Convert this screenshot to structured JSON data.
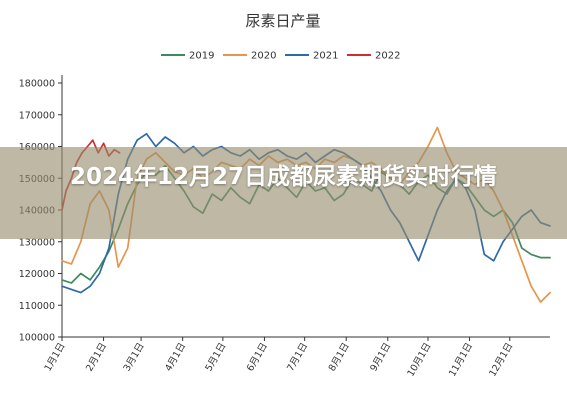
{
  "banner": {
    "headline": "2024年12月27日成都尿素期货实时行情"
  },
  "chart_data": {
    "type": "line",
    "title": "尿素日产量",
    "xlabel": "",
    "ylabel": "",
    "ylim": [
      100000,
      180000
    ],
    "yticks": [
      100000,
      110000,
      120000,
      130000,
      140000,
      150000,
      160000,
      170000,
      180000
    ],
    "x_tick_labels": [
      "1月1日",
      "2月1日",
      "3月1日",
      "4月1日",
      "5月1日",
      "6月1日",
      "7月1日",
      "8月1日",
      "9月1日",
      "10月1日",
      "11月1日",
      "12月1日"
    ],
    "x_tick_days": [
      1,
      32,
      60,
      91,
      121,
      152,
      182,
      213,
      244,
      274,
      305,
      335
    ],
    "legend_position": "top-center",
    "grid": false,
    "series": [
      {
        "name": "2019",
        "color": "#3e8a5e",
        "x_days": [
          1,
          8,
          15,
          22,
          29,
          36,
          43,
          50,
          57,
          64,
          71,
          78,
          85,
          92,
          99,
          106,
          113,
          120,
          127,
          134,
          141,
          148,
          155,
          162,
          169,
          176,
          183,
          190,
          197,
          204,
          211,
          218,
          225,
          232,
          239,
          246,
          253,
          260,
          267,
          274,
          281,
          288,
          295,
          302,
          309,
          316,
          323,
          330,
          337,
          344,
          351,
          358,
          365
        ],
        "values": [
          118000,
          117000,
          120000,
          118000,
          122000,
          127000,
          134000,
          142000,
          148000,
          152000,
          151000,
          154000,
          150000,
          146000,
          141000,
          139000,
          145000,
          143000,
          147000,
          144000,
          142000,
          148000,
          146000,
          150000,
          147000,
          144000,
          149000,
          146000,
          147000,
          143000,
          145000,
          150000,
          148000,
          146000,
          152000,
          150000,
          148000,
          145000,
          149000,
          151000,
          147000,
          145000,
          150000,
          148000,
          144000,
          140000,
          138000,
          140000,
          136000,
          128000,
          126000,
          125000,
          125000
        ]
      },
      {
        "name": "2020",
        "color": "#e5964c",
        "x_days": [
          1,
          8,
          15,
          22,
          29,
          36,
          43,
          50,
          57,
          64,
          71,
          78,
          85,
          92,
          99,
          106,
          113,
          120,
          127,
          134,
          141,
          148,
          155,
          162,
          169,
          176,
          183,
          190,
          197,
          204,
          211,
          218,
          225,
          232,
          239,
          246,
          253,
          260,
          267,
          274,
          281,
          288,
          295,
          302,
          309,
          316,
          323,
          330,
          337,
          344,
          351,
          358,
          365
        ],
        "values": [
          124000,
          123000,
          130000,
          142000,
          146000,
          140000,
          122000,
          128000,
          150000,
          156000,
          158000,
          155000,
          152000,
          151000,
          153000,
          150000,
          152000,
          155000,
          154000,
          153000,
          156000,
          154000,
          157000,
          155000,
          156000,
          154000,
          155000,
          153000,
          156000,
          155000,
          157000,
          156000,
          154000,
          155000,
          153000,
          150000,
          148000,
          152000,
          155000,
          160000,
          166000,
          158000,
          152000,
          150000,
          148000,
          150000,
          146000,
          140000,
          132000,
          124000,
          116000,
          111000,
          114000
        ]
      },
      {
        "name": "2021",
        "color": "#2e6aa6",
        "x_days": [
          1,
          8,
          15,
          22,
          29,
          36,
          43,
          50,
          57,
          64,
          71,
          78,
          85,
          92,
          99,
          106,
          113,
          120,
          127,
          134,
          141,
          148,
          155,
          162,
          169,
          176,
          183,
          190,
          197,
          204,
          211,
          218,
          225,
          232,
          239,
          246,
          253,
          260,
          267,
          274,
          281,
          288,
          295,
          302,
          309,
          316,
          323,
          330,
          337,
          344,
          351,
          358,
          365
        ],
        "values": [
          116000,
          115000,
          114000,
          116000,
          120000,
          128000,
          145000,
          156000,
          162000,
          164000,
          160000,
          163000,
          161000,
          158000,
          160000,
          157000,
          159000,
          160000,
          158000,
          157000,
          159000,
          156000,
          158000,
          159000,
          157000,
          156000,
          158000,
          155000,
          157000,
          159000,
          158000,
          156000,
          154000,
          150000,
          146000,
          140000,
          136000,
          130000,
          124000,
          132000,
          140000,
          146000,
          150000,
          147000,
          140000,
          126000,
          124000,
          130000,
          134000,
          138000,
          140000,
          136000,
          135000
        ]
      },
      {
        "name": "2022",
        "color": "#cc2f2f",
        "x_days": [
          1,
          4,
          8,
          12,
          16,
          20,
          24,
          28,
          32,
          36,
          40,
          44
        ],
        "values": [
          140000,
          146000,
          150000,
          155000,
          158000,
          160000,
          162000,
          158000,
          161000,
          157000,
          159000,
          158000
        ]
      }
    ]
  }
}
